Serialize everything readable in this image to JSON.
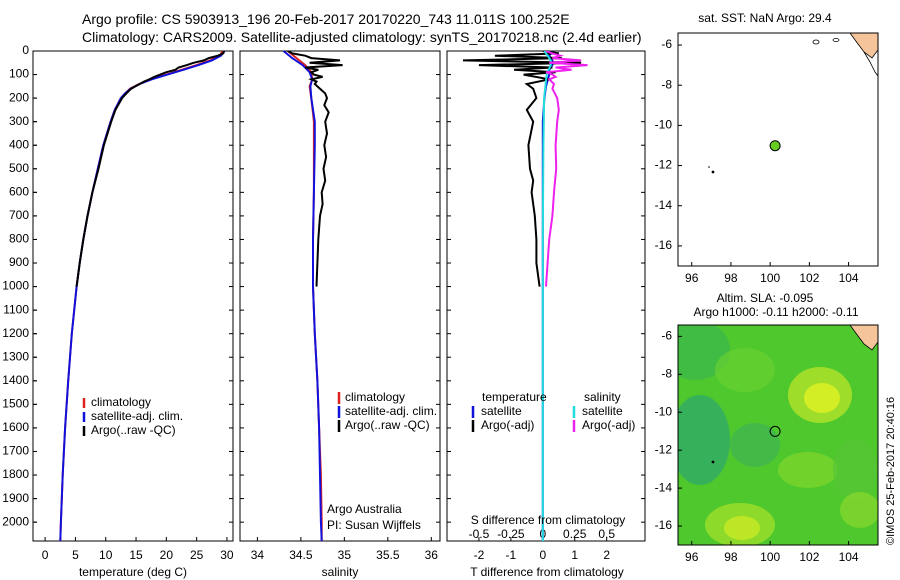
{
  "header": {
    "line1": "Argo profile: CS 5903913_196 20-Feb-2017 20170220_743 11.011S 100.252E",
    "line2": "Climatology: CARS2009. Satellite-adjusted climatology: synTS_20170218.nc (2.4d earlier)"
  },
  "footer_stamp": "©IMOS 25-Feb-2017 20:40:16",
  "colors": {
    "climatology": "#dd2222",
    "satellite": "#1111dd",
    "argo": "#000000",
    "sal_sat": "#22dddd",
    "sal_argo": "#ee22ee",
    "land": "#f5c49a",
    "float": "#66cc22"
  },
  "chart_data": [
    {
      "type": "line",
      "id": "temperature",
      "xlabel": "temperature (deg C)",
      "xlim": [
        -2,
        31
      ],
      "xticks": [
        0,
        5,
        10,
        15,
        20,
        25,
        30
      ],
      "ylim": [
        0,
        2080
      ],
      "yticks": [
        0,
        100,
        200,
        300,
        400,
        500,
        600,
        700,
        800,
        900,
        1000,
        1100,
        1200,
        1300,
        1400,
        1500,
        1600,
        1700,
        1800,
        1900,
        2000
      ],
      "legend": [
        "climatology",
        "satellite-adj. clim.",
        "Argo(..raw -QC)"
      ],
      "series": [
        {
          "name": "climatology",
          "depth": [
            0,
            20,
            40,
            60,
            80,
            100,
            120,
            140,
            160,
            180,
            200,
            250,
            300,
            400,
            500,
            600,
            700,
            800,
            900,
            1000,
            1200,
            1400,
            1600,
            1800,
            2000,
            2080
          ],
          "values": [
            29.3,
            28.8,
            27.2,
            25,
            22.5,
            20,
            17.5,
            15.5,
            14,
            13.2,
            12.5,
            11.5,
            10.8,
            9.6,
            8.7,
            7.8,
            7.0,
            6.3,
            5.7,
            5.2,
            4.4,
            3.8,
            3.3,
            2.9,
            2.6,
            2.5
          ]
        },
        {
          "name": "satellite-adj. clim.",
          "depth": [
            0,
            20,
            40,
            60,
            80,
            100,
            120,
            140,
            160,
            180,
            200,
            250,
            300,
            400,
            500,
            600,
            700,
            800,
            900,
            1000,
            1200,
            1400,
            1600,
            1800,
            2000,
            2080
          ],
          "values": [
            29.6,
            29.0,
            27.5,
            25.3,
            22.8,
            20.2,
            17.6,
            15.6,
            14.1,
            13.2,
            12.5,
            11.5,
            10.8,
            9.6,
            8.7,
            7.8,
            7.0,
            6.3,
            5.7,
            5.2,
            4.4,
            3.8,
            3.3,
            2.9,
            2.6,
            2.5
          ]
        },
        {
          "name": "Argo(..raw -QC)",
          "depth": [
            0,
            10,
            20,
            30,
            40,
            50,
            60,
            70,
            80,
            90,
            100,
            110,
            120,
            130,
            140,
            150,
            160,
            180,
            200,
            250,
            300,
            400,
            500,
            600,
            700,
            800,
            900,
            1000
          ],
          "values": [
            29.5,
            29.4,
            28.5,
            27.0,
            26.2,
            24.5,
            23.4,
            22.0,
            21.5,
            20.0,
            19.0,
            18.0,
            17.2,
            16.3,
            15.6,
            14.9,
            14.2,
            13.4,
            12.7,
            11.6,
            10.9,
            9.7,
            8.8,
            7.8,
            7.0,
            6.3,
            5.7,
            5.2
          ]
        }
      ]
    },
    {
      "type": "line",
      "id": "salinity",
      "xlabel": "salinity",
      "xlim": [
        33.8,
        36.1
      ],
      "xticks": [
        34,
        34.5,
        35,
        35.5,
        36
      ],
      "ylim": [
        0,
        2080
      ],
      "legend": [
        "climatology",
        "satellite-adj. clim.",
        "Argo(..raw -QC)"
      ],
      "annotations": [
        "Argo Australia",
        "PI: Susan Wijffels"
      ],
      "series": [
        {
          "name": "climatology",
          "depth": [
            0,
            30,
            60,
            90,
            120,
            150,
            200,
            300,
            400,
            600,
            800,
            1000,
            1200,
            1400,
            1600,
            1800,
            2000,
            2080
          ],
          "values": [
            34.35,
            34.45,
            34.55,
            34.62,
            34.63,
            34.6,
            34.62,
            34.65,
            34.65,
            34.65,
            34.64,
            34.64,
            34.66,
            34.69,
            34.71,
            34.73,
            34.74,
            34.74
          ]
        },
        {
          "name": "satellite-adj. clim.",
          "depth": [
            0,
            30,
            60,
            90,
            120,
            150,
            200,
            300,
            400,
            600,
            800,
            1000,
            1200,
            1400,
            1600,
            1800,
            2000,
            2080
          ],
          "values": [
            34.3,
            34.4,
            34.52,
            34.6,
            34.63,
            34.61,
            34.62,
            34.66,
            34.66,
            34.65,
            34.64,
            34.64,
            34.66,
            34.69,
            34.71,
            34.72,
            34.73,
            34.74
          ]
        },
        {
          "name": "Argo(..raw -QC)",
          "depth": [
            0,
            10,
            20,
            30,
            40,
            50,
            60,
            70,
            80,
            90,
            100,
            110,
            120,
            130,
            140,
            160,
            180,
            200,
            230,
            260,
            300,
            350,
            400,
            450,
            500,
            550,
            600,
            650,
            700,
            800,
            900,
            1000
          ],
          "values": [
            34.35,
            34.4,
            34.55,
            34.62,
            34.95,
            34.6,
            34.98,
            34.55,
            34.7,
            34.62,
            34.65,
            34.75,
            34.62,
            34.68,
            34.66,
            34.72,
            34.78,
            34.8,
            34.77,
            34.82,
            34.78,
            34.8,
            34.77,
            34.79,
            34.76,
            34.78,
            34.74,
            34.75,
            34.72,
            34.7,
            34.69,
            34.68
          ]
        }
      ]
    },
    {
      "type": "line",
      "id": "difference",
      "xlabel": "T difference from climatology",
      "top_axis_label": "S difference from climatology",
      "xlim": [
        -3,
        3.2
      ],
      "xticks": [
        -2,
        -1,
        0,
        1,
        2
      ],
      "top_ticks": [
        -0.5,
        -0.25,
        0,
        0.25,
        0.5
      ],
      "ylim": [
        0,
        2080
      ],
      "legend_headers": [
        "temperature",
        "salinity"
      ],
      "legend": [
        "satellite",
        "Argo(-adj)",
        "satellite",
        "Argo(-adj)"
      ],
      "series": [
        {
          "name": "satellite",
          "group": "temperature",
          "depth": [
            0,
            20,
            40,
            60,
            80,
            100,
            150,
            200,
            300,
            400,
            500,
            600,
            800,
            1000,
            1500,
            2000,
            2080
          ],
          "values": [
            0.3,
            0.2,
            0.3,
            0.3,
            0.2,
            0.2,
            0.1,
            0.05,
            0,
            0,
            0,
            0,
            0,
            0,
            0,
            0,
            0
          ]
        },
        {
          "name": "Argo(-adj)",
          "group": "temperature",
          "depth": [
            0,
            10,
            20,
            30,
            40,
            50,
            60,
            70,
            80,
            90,
            100,
            120,
            140,
            160,
            200,
            250,
            300,
            400,
            500,
            550,
            600,
            700,
            800,
            900,
            1000
          ],
          "values": [
            0,
            0.5,
            -1.5,
            0.6,
            -2.5,
            1.2,
            -2.0,
            0.3,
            -0.9,
            0.4,
            -0.6,
            0.2,
            -0.5,
            -0.3,
            -0.2,
            -0.5,
            -0.3,
            -0.45,
            -0.4,
            -0.3,
            -0.35,
            -0.25,
            -0.2,
            -0.2,
            -0.1
          ]
        },
        {
          "name": "satellite",
          "group": "salinity",
          "depth": [
            0,
            20,
            40,
            60,
            80,
            100,
            150,
            200,
            300,
            400,
            600,
            800,
            1000,
            1500,
            2000,
            2080
          ],
          "values": [
            0.05,
            0.15,
            0.25,
            0.25,
            0.18,
            0.12,
            0.08,
            0.04,
            0.03,
            0.02,
            0.01,
            0,
            0,
            0,
            0,
            0
          ]
        },
        {
          "name": "Argo(-adj)",
          "group": "salinity",
          "depth": [
            0,
            10,
            20,
            30,
            40,
            50,
            60,
            70,
            80,
            90,
            100,
            110,
            120,
            140,
            160,
            200,
            250,
            300,
            400,
            500,
            600,
            700,
            800,
            1000
          ],
          "values": [
            0.1,
            0.3,
            0.55,
            0.3,
            1.2,
            0.2,
            1.4,
            0.4,
            0.9,
            0.1,
            0.3,
            0.4,
            0.2,
            0.35,
            0.3,
            0.45,
            0.5,
            0.45,
            0.4,
            0.42,
            0.35,
            0.3,
            0.2,
            0.1
          ]
        }
      ]
    },
    {
      "type": "scatter",
      "id": "sst-map",
      "title": "sat. SST: NaN Argo: 29.4",
      "xlim": [
        95.3,
        105.5
      ],
      "ylim": [
        -17,
        -5.4
      ],
      "xticks": [
        96,
        98,
        100,
        102,
        104
      ],
      "yticks": [
        -6,
        -8,
        -10,
        -12,
        -14,
        -16
      ],
      "points": [
        {
          "x": 100.252,
          "y": -11.011
        }
      ]
    },
    {
      "type": "heatmap",
      "id": "sla-map",
      "title_line1": "Altim. SLA: -0.095",
      "title_line2": "Argo h1000: -0.11 h2000: -0.11",
      "xlim": [
        95.3,
        105.5
      ],
      "ylim": [
        -17,
        -5.4
      ],
      "xticks": [
        96,
        98,
        100,
        102,
        104
      ],
      "yticks": [
        -6,
        -8,
        -10,
        -12,
        -14,
        -16
      ],
      "points": [
        {
          "x": 100.252,
          "y": -11.011
        }
      ]
    }
  ]
}
